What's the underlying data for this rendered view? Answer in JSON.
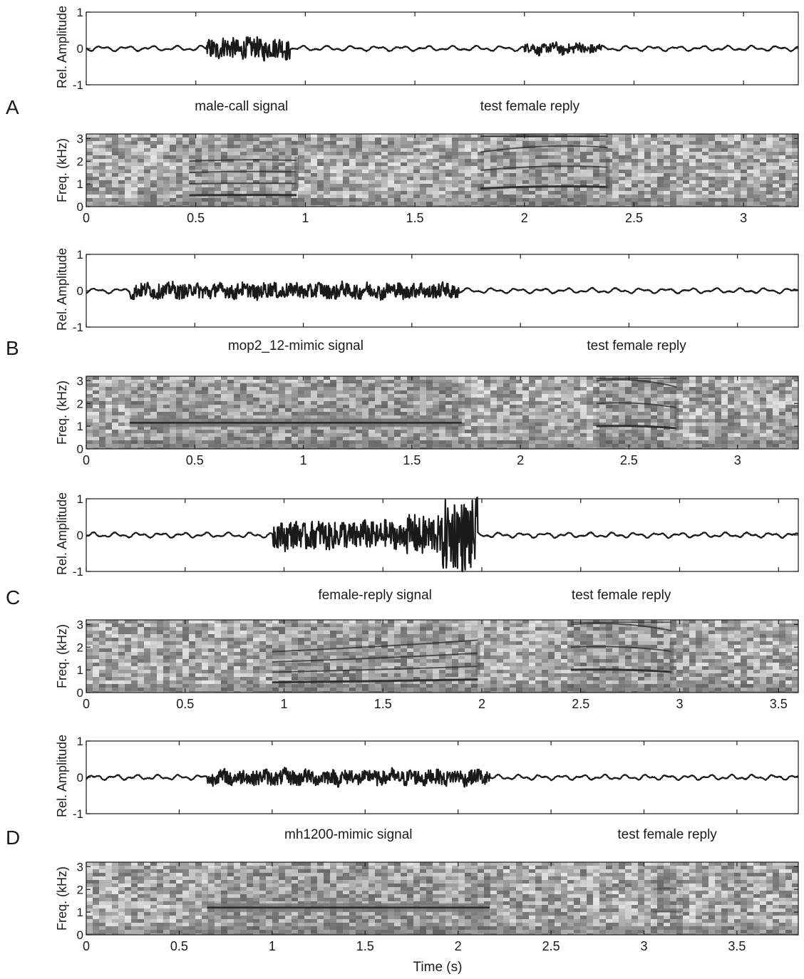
{
  "chart_data": [
    {
      "panel": "A",
      "type": "line",
      "ylabel": "Rel. Amplitude",
      "ylim": [
        -1,
        1
      ],
      "yticks": [
        -1,
        0,
        1
      ],
      "xlim": [
        0,
        3.25
      ],
      "segments": [
        {
          "x0": 0.0,
          "x1": 0.55,
          "amp": 0.08
        },
        {
          "x0": 0.55,
          "x1": 0.93,
          "amp": 0.28
        },
        {
          "x0": 0.93,
          "x1": 2.0,
          "amp": 0.08
        },
        {
          "x0": 2.0,
          "x1": 2.35,
          "amp": 0.13
        },
        {
          "x0": 2.35,
          "x1": 3.25,
          "amp": 0.08
        }
      ]
    },
    {
      "panel": "A",
      "type": "heatmap",
      "ylabel": "Freq. (kHz)",
      "ylim": [
        0,
        3.2
      ],
      "yticks": [
        0,
        1,
        2,
        3
      ],
      "xlim": [
        0,
        3.25
      ],
      "xticks": [
        0,
        0.5,
        1,
        1.5,
        2,
        2.5,
        3
      ],
      "labels": [
        "male-call signal",
        "test female reply"
      ],
      "calls": [
        {
          "x0": 0.47,
          "x1": 0.96,
          "f0": 0.5,
          "f1": 0.55,
          "harmonics": 4,
          "bend": -0.15
        },
        {
          "x0": 1.8,
          "x1": 2.38,
          "f0": 0.8,
          "f1": 1.05,
          "harmonics": 5,
          "bend": -0.35
        }
      ]
    },
    {
      "panel": "B",
      "type": "line",
      "ylabel": "Rel. Amplitude",
      "ylim": [
        -1,
        1
      ],
      "yticks": [
        -1,
        0,
        1
      ],
      "xlim": [
        0,
        3.28
      ],
      "segments": [
        {
          "x0": 0.0,
          "x1": 0.2,
          "amp": 0.08
        },
        {
          "x0": 0.2,
          "x1": 1.72,
          "amp": 0.2
        },
        {
          "x0": 1.72,
          "x1": 3.28,
          "amp": 0.07
        }
      ]
    },
    {
      "panel": "B",
      "type": "heatmap",
      "ylabel": "Freq. (kHz)",
      "ylim": [
        0,
        3.2
      ],
      "yticks": [
        0,
        1,
        2,
        3
      ],
      "xlim": [
        0,
        3.28
      ],
      "xticks": [
        0,
        0.5,
        1,
        1.5,
        2,
        2.5,
        3
      ],
      "labels": [
        "mop2_12-mimic signal",
        "test female reply"
      ],
      "calls": [
        {
          "x0": 0.2,
          "x1": 1.73,
          "f0": 1.15,
          "f1": 1.15,
          "harmonics": 1,
          "bend": 0,
          "tone": true
        },
        {
          "x0": 2.35,
          "x1": 2.72,
          "f0": 1.0,
          "f1": 1.1,
          "harmonics": 4,
          "bend": -0.35
        }
      ]
    },
    {
      "panel": "C",
      "type": "line",
      "ylabel": "Rel. Amplitude",
      "ylim": [
        -1,
        1
      ],
      "yticks": [
        -1,
        0,
        1
      ],
      "xlim": [
        0,
        3.6
      ],
      "segments": [
        {
          "x0": 0.0,
          "x1": 0.94,
          "amp": 0.08
        },
        {
          "x0": 0.94,
          "x1": 1.62,
          "amp": 0.38
        },
        {
          "x0": 1.62,
          "x1": 1.8,
          "amp": 0.55
        },
        {
          "x0": 1.8,
          "x1": 1.98,
          "amp": 1.0
        },
        {
          "x0": 1.98,
          "x1": 2.9,
          "amp": 0.1
        },
        {
          "x0": 2.9,
          "x1": 3.6,
          "amp": 0.07
        }
      ]
    },
    {
      "panel": "C",
      "type": "heatmap",
      "ylabel": "Freq. (kHz)",
      "ylim": [
        0,
        3.2
      ],
      "yticks": [
        0,
        1,
        2,
        3
      ],
      "xlim": [
        0,
        3.6
      ],
      "xticks": [
        0,
        0.5,
        1,
        1.5,
        2,
        2.5,
        3,
        3.5
      ],
      "labels": [
        "female-reply signal",
        "test female reply"
      ],
      "calls": [
        {
          "x0": 0.94,
          "x1": 1.98,
          "f0": 0.45,
          "f1": 0.55,
          "harmonics": 4,
          "bend": 0.1
        },
        {
          "x0": 2.45,
          "x1": 2.96,
          "f0": 1.0,
          "f1": 1.1,
          "harmonics": 4,
          "bend": -0.35
        }
      ]
    },
    {
      "panel": "D",
      "type": "line",
      "ylabel": "Rel. Amplitude",
      "ylim": [
        -1,
        1
      ],
      "yticks": [
        -1,
        0,
        1
      ],
      "xlim": [
        0,
        3.83
      ],
      "segments": [
        {
          "x0": 0.0,
          "x1": 0.65,
          "amp": 0.08
        },
        {
          "x0": 0.65,
          "x1": 2.17,
          "amp": 0.2
        },
        {
          "x0": 2.17,
          "x1": 3.83,
          "amp": 0.07
        }
      ]
    },
    {
      "panel": "D",
      "type": "heatmap",
      "ylabel": "Freq. (kHz)",
      "ylim": [
        0,
        3.2
      ],
      "yticks": [
        0,
        1,
        2,
        3
      ],
      "xlim": [
        0,
        3.83
      ],
      "xticks": [
        0,
        0.5,
        1,
        1.5,
        2,
        2.5,
        3,
        3.5
      ],
      "xlabel": "Time (s)",
      "labels": [
        "mh1200-mimic signal",
        "test female reply"
      ],
      "calls": [
        {
          "x0": 0.65,
          "x1": 2.17,
          "f0": 1.2,
          "f1": 1.2,
          "harmonics": 1,
          "bend": 0,
          "tone": true
        },
        {
          "x0": 3.05,
          "x1": 3.2,
          "f0": 1.0,
          "f1": 1.1,
          "harmonics": 2,
          "bend": -0.2,
          "faint": true
        }
      ]
    }
  ],
  "panel_letters": [
    "A",
    "B",
    "C",
    "D"
  ],
  "colors": {
    "trace": "#1a1a1a",
    "axis": "#1a1a1a",
    "spec_background": "#9a9a9a",
    "spec_line": "#2a2a2a"
  }
}
